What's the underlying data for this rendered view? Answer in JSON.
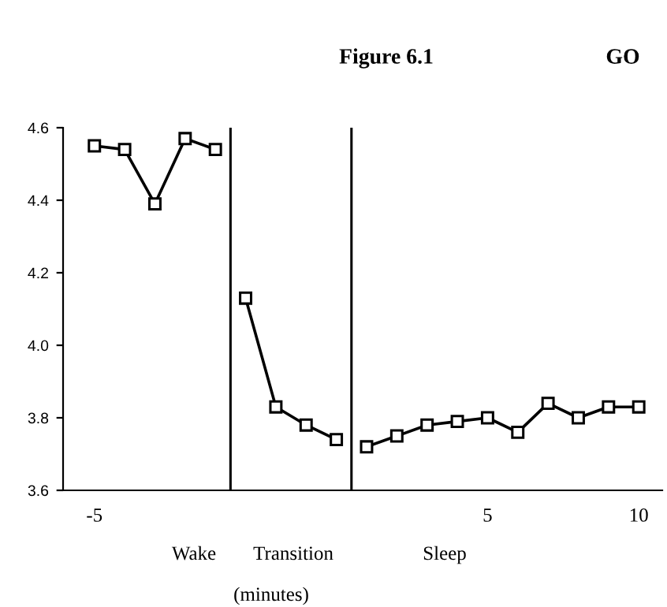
{
  "chart_data": {
    "type": "line",
    "title": "Figure 6.1",
    "annotations": [
      "GO",
      "Wake",
      "Transition",
      "Sleep",
      "(minutes)"
    ],
    "categories": [
      "-5",
      null,
      null,
      null,
      null,
      null,
      null,
      null,
      null,
      null,
      null,
      null,
      null,
      "5",
      null,
      null,
      null,
      null,
      "10"
    ],
    "ylim": [
      3.6,
      4.6
    ],
    "yticks": [
      3.6,
      3.8,
      {
        "value": 4.0,
        "label": "4.0"
      },
      4.2,
      4.4,
      4.6
    ],
    "marker": "square",
    "series": [
      {
        "color": "#000000",
        "values": [
          4.55,
          4.54,
          4.39,
          4.57,
          4.54,
          null,
          null,
          null,
          null,
          null,
          null,
          null,
          null,
          null,
          null,
          null,
          null,
          null,
          null
        ]
      },
      {
        "color": "#000000",
        "values": [
          null,
          null,
          null,
          null,
          null,
          4.13,
          3.83,
          3.78,
          3.74,
          null,
          null,
          null,
          null,
          null,
          null,
          null,
          null,
          null,
          null
        ]
      },
      {
        "color": "#000000",
        "values": [
          null,
          null,
          null,
          null,
          null,
          null,
          null,
          null,
          null,
          3.72,
          3.75,
          3.78,
          3.79,
          3.8,
          3.76,
          3.84,
          3.8,
          3.83,
          3.83
        ]
      }
    ]
  }
}
